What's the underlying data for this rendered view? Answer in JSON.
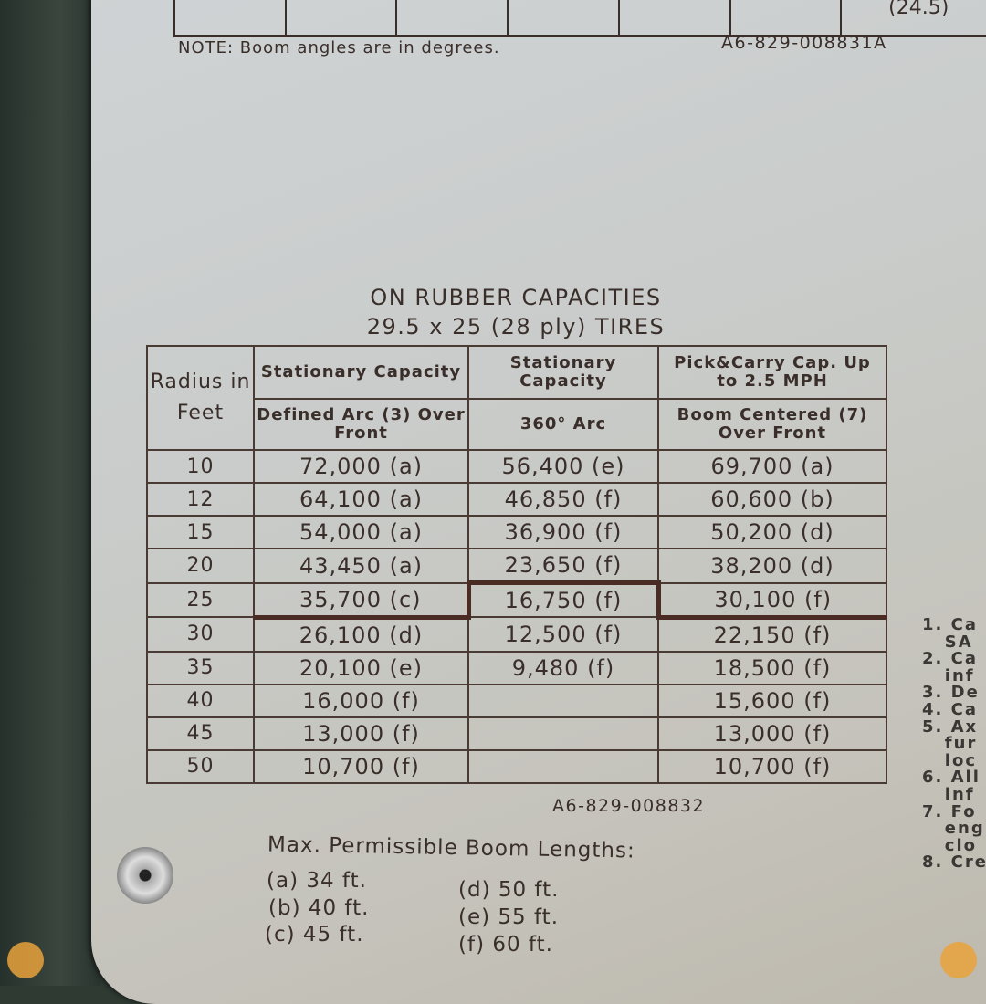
{
  "top": {
    "partial_value": "(24.5)",
    "note": "NOTE: Boom angles are in degrees.",
    "code": "A6-829-008831A"
  },
  "chart": {
    "title": "ON RUBBER CAPACITIES",
    "subtitle": "29.5 x 25 (28 ply) TIRES",
    "headers": {
      "radius": "Radius in Feet",
      "col1_top": "Stationary Capacity",
      "col1_sub": "Defined Arc (3) Over Front",
      "col2_top": "Stationary Capacity",
      "col2_sub": "360° Arc",
      "col3_top": "Pick&Carry Cap. Up to 2.5 MPH",
      "col3_sub": "Boom Centered (7) Over Front"
    },
    "rows": [
      {
        "radius": "10",
        "defined_arc": "72,000 (a)",
        "arc360": "56,400 (e)",
        "pick_carry": "69,700 (a)"
      },
      {
        "radius": "12",
        "defined_arc": "64,100 (a)",
        "arc360": "46,850 (f)",
        "pick_carry": "60,600 (b)"
      },
      {
        "radius": "15",
        "defined_arc": "54,000 (a)",
        "arc360": "36,900 (f)",
        "pick_carry": "50,200 (d)"
      },
      {
        "radius": "20",
        "defined_arc": "43,450 (a)",
        "arc360": "23,650 (f)",
        "pick_carry": "38,200 (d)"
      },
      {
        "radius": "25",
        "defined_arc": "35,700 (c)",
        "arc360": "16,750 (f)",
        "pick_carry": "30,100 (f)"
      },
      {
        "radius": "30",
        "defined_arc": "26,100 (d)",
        "arc360": "12,500 (f)",
        "pick_carry": "22,150 (f)"
      },
      {
        "radius": "35",
        "defined_arc": "20,100 (e)",
        "arc360": "9,480 (f)",
        "pick_carry": "18,500 (f)"
      },
      {
        "radius": "40",
        "defined_arc": "16,000 (f)",
        "arc360": "",
        "pick_carry": "15,600 (f)"
      },
      {
        "radius": "45",
        "defined_arc": "13,000 (f)",
        "arc360": "",
        "pick_carry": "13,000 (f)"
      },
      {
        "radius": "50",
        "defined_arc": "10,700 (f)",
        "arc360": "",
        "pick_carry": "10,700 (f)"
      }
    ],
    "code": "A6-829-008832"
  },
  "boom_lengths": {
    "title": "Max. Permissible Boom Lengths:",
    "items": [
      "(a) 34 ft.",
      "(b) 40 ft.",
      "(c) 45 ft.",
      "(d) 50 ft.",
      "(e) 55 ft.",
      "(f) 60 ft."
    ]
  },
  "side_notes": "1. Ca\n   SA\n2. Ca\n   inf\n3. De\n4. Ca\n5. Ax\n   fur\n   loc\n6. All\n   inf\n7. Fo\n   eng\n   clo\n8. Cre"
}
